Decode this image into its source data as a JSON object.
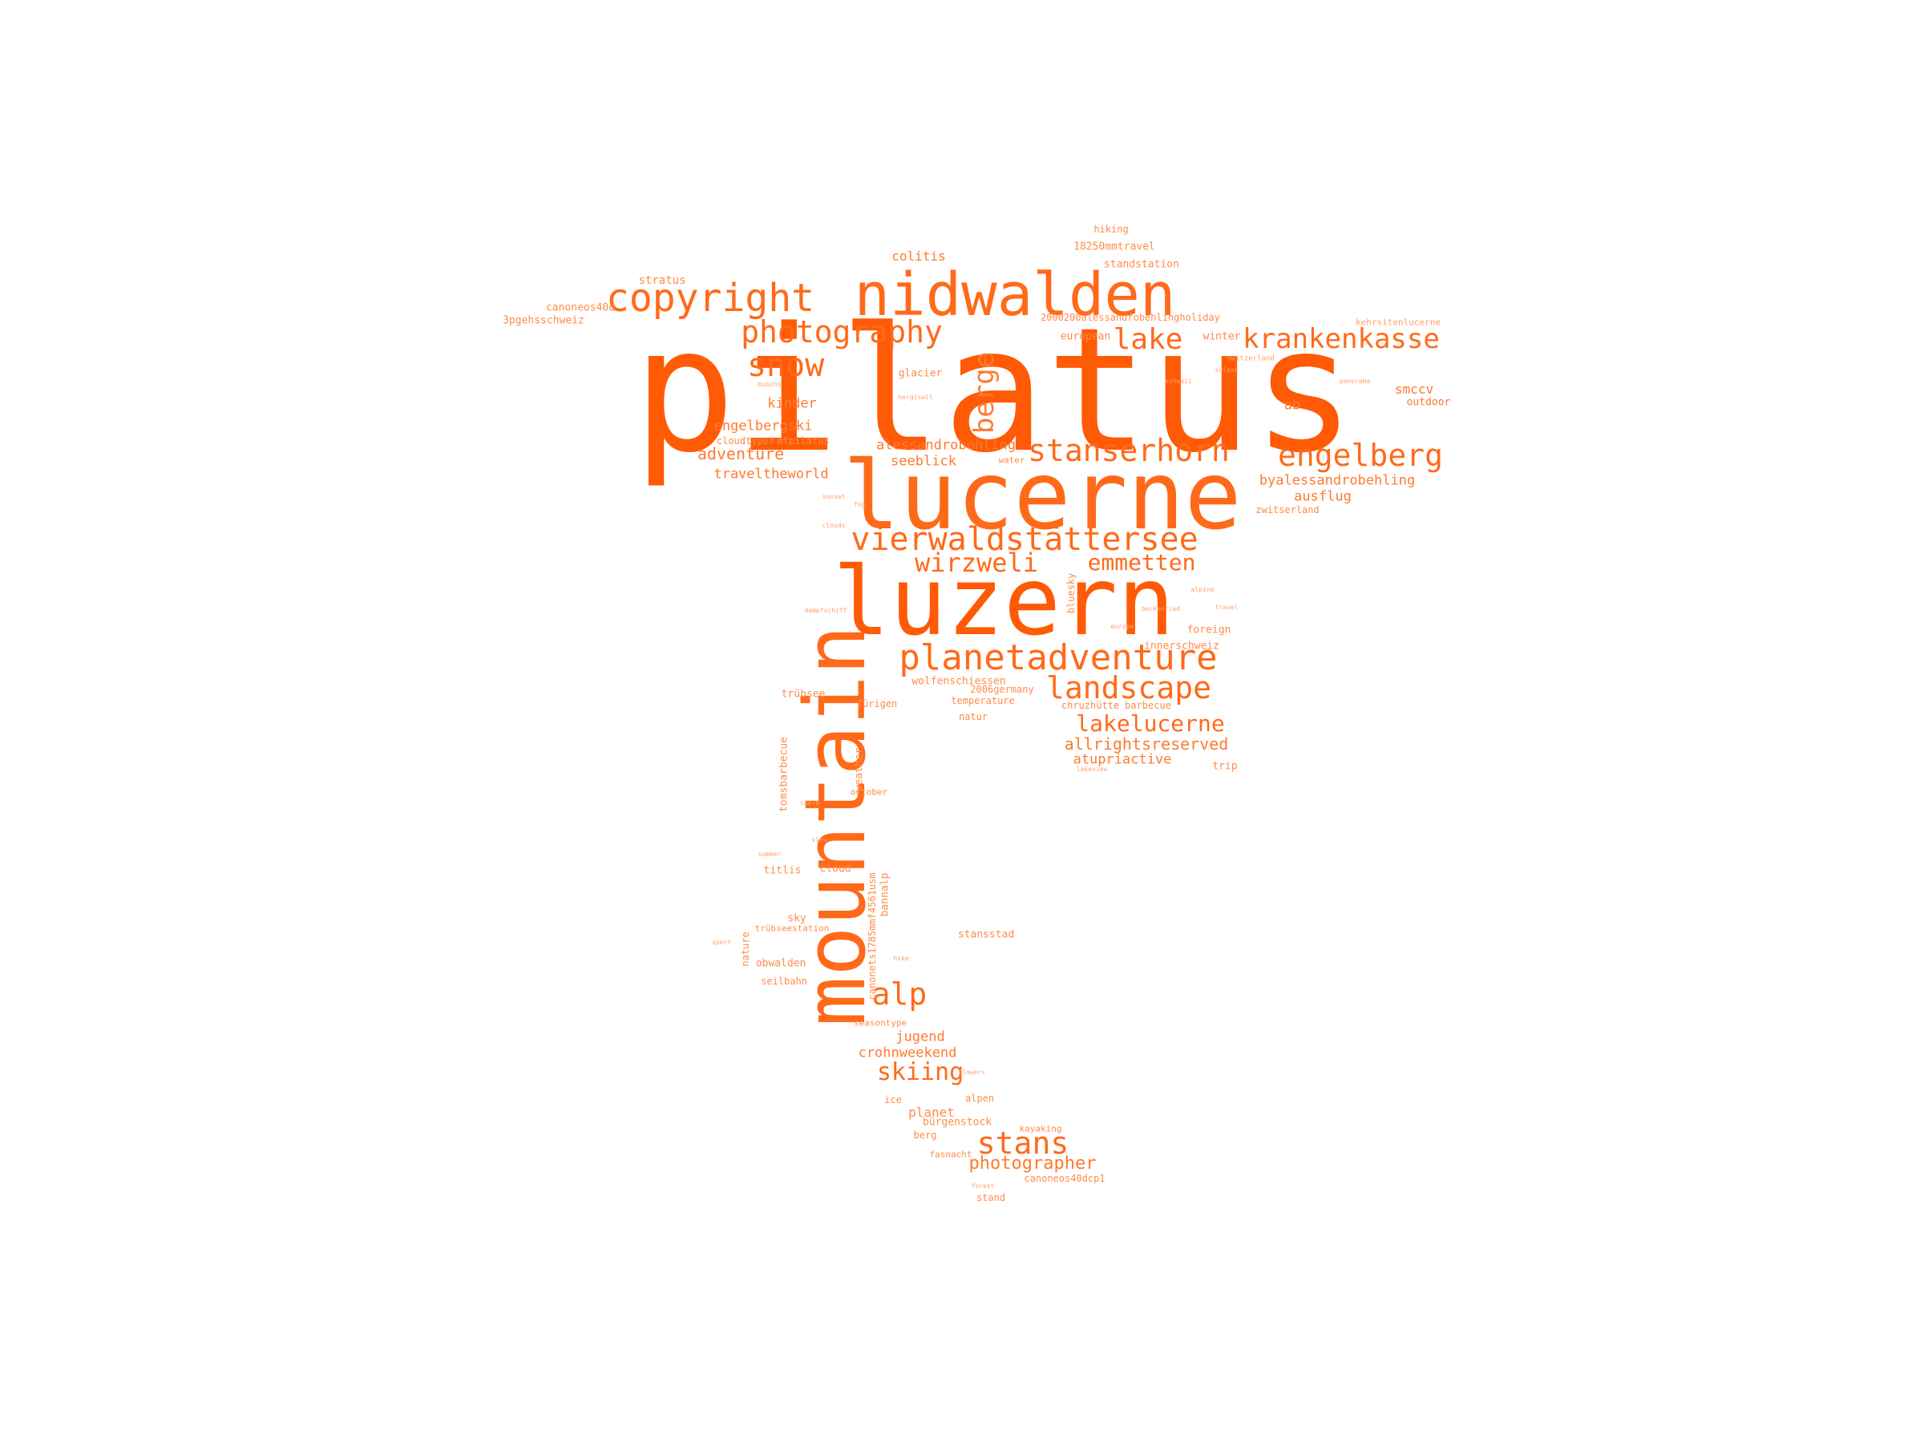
{
  "title": "",
  "colors": {
    "primary": "#ff5a05",
    "secondary": "#ff7a30",
    "light": "#ffa066"
  },
  "words": {
    "pilatus": "pilatus",
    "lucerne": "lucerne",
    "luzern": "luzern",
    "mountain": "mountain",
    "nidwalden": "nidwalden",
    "copyright": "copyright",
    "photography": "photography",
    "snow": "snow",
    "berge": "berge",
    "lake": "lake",
    "krankenkasse": "krankenkasse",
    "engelberg": "engelberg",
    "stanserhorn": "stanserhorn",
    "vierwaldstattersee": "vierwaldstättersee",
    "wirzweli": "wirzweli",
    "emmetten": "emmetten",
    "planetadventure": "planetadventure",
    "landscape": "landscape",
    "lakelucerne": "lakelucerne",
    "allrightsreserved": "allrightsreserved",
    "atupriactive": "atupriactive",
    "alp": "alp",
    "stans": "stans",
    "skiing": "skiing",
    "photographer": "photographer",
    "jugend": "jugend",
    "crohnweekend": "crohnweekend",
    "adventure": "adventure",
    "traveltheworld": "traveltheworld",
    "engelbergski": "engelbergski",
    "kinder": "kinder",
    "alessandrobehling": "alessandrobehling",
    "seeblick": "seeblick",
    "byalessandrobehling": "byalessandrobehling",
    "ausflug": "ausflug",
    "zwitserland": "zwitserland",
    "smccv": "smccv",
    "outdoor": "outdoor",
    "ab": "ab",
    "colitis": "colitis",
    "hiking": "hiking",
    "standstation": "standstation",
    "mmtravel": "18250mmtravel",
    "holiday": "2000200alessandrobehlingholiday",
    "european": "european",
    "winter": "winter",
    "glacier": "glacier",
    "stratus": "stratus",
    "canoneos40d": "canoneos40d",
    "gehsschweiz": "3pgehsschweiz",
    "cloudtypes": "cloudtypes",
    "mtpilatus": "mtpilatus",
    "wolfenschiessen": "wolfenschiessen",
    "innerschweiz": "innerschweiz",
    "foreign": "foreign",
    "trubsee": "trübsee",
    "furigen": "fürigen",
    "temperature": "temperature",
    "natur": "natur",
    "chruzhutte": "chruzhütte",
    "barbecue": "barbecue",
    "trip": "trip",
    "germany": "2006germany",
    "tomsbarbecue": "tomsbarbecue",
    "weather": "weather",
    "october": "october",
    "cloud": "cloud",
    "titlis": "titlis",
    "sky": "sky",
    "trubseestation": "trübseestation",
    "obwalden": "obwalden",
    "seilbahn": "seilbahn",
    "nature": "nature",
    "bannalp": "bannalp",
    "canonets": "canonets1785mmf4561usm",
    "seasontype": "seasontype",
    "alpen": "alpen",
    "ice": "ice",
    "planet": "planet",
    "burgenstock": "bürgenstock",
    "berg": "berg",
    "kayaking": "kayaking",
    "fasnacht": "fasnacht",
    "canoneos40dcp1": "canoneos40dcp1",
    "stand": "stand",
    "bluesky": "bluesky",
    "stansstad": "stansstad",
    "water": "water",
    "sport": "sport",
    "kehrsitenlucerne": "kehrsitenlucerne",
    "switzerland": "switzerland",
    "panorama": "panorama",
    "schweiz": "schweiz",
    "suisse": "suisse",
    "hergiswil": "hergiswil",
    "buochs": "buochs",
    "beckenried": "beckenried",
    "sunset": "sunset",
    "clouds": "clouds",
    "alpine": "alpine",
    "travel": "travel",
    "view": "view",
    "summer": "summer",
    "europe": "europe",
    "hike": "hike",
    "lakeview": "lakeview",
    "fog": "fog",
    "cable": "cable",
    "dampfschiff": "dampfschiff",
    "flowers": "flowers",
    "forest": "forest"
  }
}
